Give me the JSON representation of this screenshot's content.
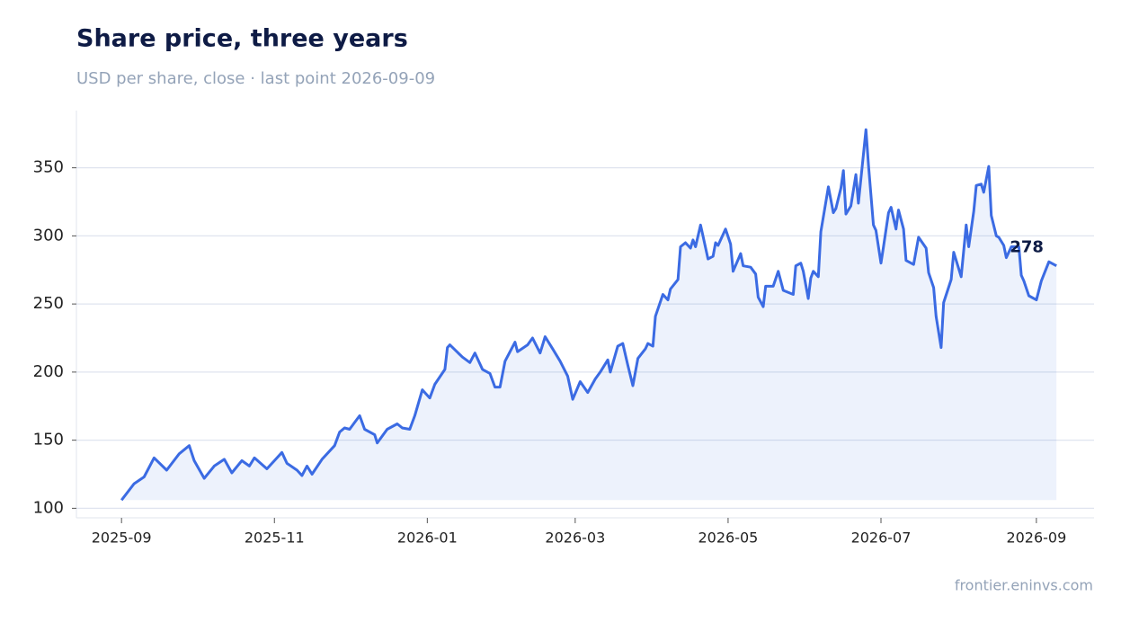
{
  "chart_data": {
    "type": "line",
    "title": "Share price, three years",
    "subtitle": "USD per share, close · last point 2026-09-09",
    "source": "frontier.eninvs.com",
    "x": [
      "2025-09-01",
      "2025-09-06",
      "2025-09-10",
      "2025-09-14",
      "2025-09-19",
      "2025-09-24",
      "2025-09-28",
      "2025-09-30",
      "2025-10-04",
      "2025-10-08",
      "2025-10-12",
      "2025-10-15",
      "2025-10-19",
      "2025-10-22",
      "2025-10-24",
      "2025-10-29",
      "2025-11-01",
      "2025-11-04",
      "2025-11-06",
      "2025-11-10",
      "2025-11-12",
      "2025-11-14",
      "2025-11-16",
      "2025-11-20",
      "2025-11-25",
      "2025-11-27",
      "2025-11-29",
      "2025-12-01",
      "2025-12-03",
      "2025-12-05",
      "2025-12-07",
      "2025-12-11",
      "2025-12-12",
      "2025-12-16",
      "2025-12-20",
      "2025-12-22",
      "2025-12-25",
      "2025-12-27",
      "2025-12-30",
      "2026-01-02",
      "2026-01-04",
      "2026-01-08",
      "2026-01-09",
      "2026-01-10",
      "2026-01-15",
      "2026-01-18",
      "2026-01-20",
      "2026-01-23",
      "2026-01-26",
      "2026-01-28",
      "2026-01-30",
      "2026-02-01",
      "2026-02-05",
      "2026-02-06",
      "2026-02-10",
      "2026-02-12",
      "2026-02-15",
      "2026-02-17",
      "2026-02-20",
      "2026-02-23",
      "2026-02-26",
      "2026-02-28",
      "2026-03-03",
      "2026-03-06",
      "2026-03-09",
      "2026-03-11",
      "2026-03-14",
      "2026-03-15",
      "2026-03-18",
      "2026-03-20",
      "2026-03-22",
      "2026-03-24",
      "2026-03-26",
      "2026-03-29",
      "2026-03-30",
      "2026-04-01",
      "2026-04-02",
      "2026-04-05",
      "2026-04-07",
      "2026-04-08",
      "2026-04-11",
      "2026-04-12",
      "2026-04-14",
      "2026-04-16",
      "2026-04-17",
      "2026-04-18",
      "2026-04-20",
      "2026-04-21",
      "2026-04-23",
      "2026-04-25",
      "2026-04-26",
      "2026-04-27",
      "2026-04-30",
      "2026-05-02",
      "2026-05-03",
      "2026-05-06",
      "2026-05-07",
      "2026-05-10",
      "2026-05-12",
      "2026-05-13",
      "2026-05-15",
      "2026-05-16",
      "2026-05-19",
      "2026-05-21",
      "2026-05-23",
      "2026-05-27",
      "2026-05-28",
      "2026-05-30",
      "2026-05-31",
      "2026-06-02",
      "2026-06-03",
      "2026-06-04",
      "2026-06-06",
      "2026-06-07",
      "2026-06-09",
      "2026-06-10",
      "2026-06-12",
      "2026-06-13",
      "2026-06-15",
      "2026-06-16",
      "2026-06-17",
      "2026-06-19",
      "2026-06-21",
      "2026-06-22",
      "2026-06-24",
      "2026-06-25",
      "2026-06-26",
      "2026-06-28",
      "2026-06-29",
      "2026-07-01",
      "2026-07-02",
      "2026-07-04",
      "2026-07-05",
      "2026-07-07",
      "2026-07-08",
      "2026-07-10",
      "2026-07-11",
      "2026-07-14",
      "2026-07-16",
      "2026-07-19",
      "2026-07-20",
      "2026-07-22",
      "2026-07-23",
      "2026-07-25",
      "2026-07-26",
      "2026-07-29",
      "2026-07-30",
      "2026-08-02",
      "2026-08-04",
      "2026-08-05",
      "2026-08-07",
      "2026-08-08",
      "2026-08-10",
      "2026-08-11",
      "2026-08-13",
      "2026-08-14",
      "2026-08-16",
      "2026-08-17",
      "2026-08-19",
      "2026-08-20",
      "2026-08-22",
      "2026-08-24",
      "2026-08-25",
      "2026-08-26",
      "2026-08-27",
      "2026-08-29",
      "2026-09-01",
      "2026-09-03",
      "2026-09-06",
      "2026-09-09"
    ],
    "series": [
      {
        "name": "Close",
        "color": "#3b6be3",
        "values": [
          106,
          118,
          123,
          137,
          128,
          140,
          146,
          135,
          122,
          131,
          136,
          126,
          135,
          131,
          137,
          129,
          135,
          141,
          133,
          128,
          124,
          131,
          125,
          136,
          146,
          156,
          159,
          158,
          163,
          168,
          158,
          154,
          148,
          158,
          162,
          159,
          158,
          168,
          187,
          181,
          191,
          202,
          218,
          220,
          211,
          207,
          214,
          202,
          199,
          189,
          189,
          208,
          222,
          215,
          220,
          225,
          214,
          226,
          217,
          208,
          197,
          180,
          193,
          185,
          195,
          200,
          209,
          200,
          219,
          221,
          205,
          190,
          210,
          217,
          221,
          219,
          241,
          257,
          253,
          261,
          268,
          292,
          295,
          291,
          297,
          292,
          308,
          300,
          283,
          285,
          295,
          293,
          305,
          294,
          274,
          287,
          278,
          277,
          272,
          255,
          248,
          263,
          263,
          274,
          260,
          257,
          278,
          280,
          274,
          254,
          269,
          274,
          270,
          303,
          325,
          336,
          317,
          320,
          335,
          348,
          316,
          322,
          345,
          324,
          360,
          378,
          352,
          308,
          304,
          280,
          292,
          317,
          321,
          305,
          319,
          305,
          282,
          279,
          299,
          291,
          273,
          262,
          241,
          218,
          251,
          268,
          288,
          270,
          308,
          292,
          318,
          337,
          338,
          332,
          351,
          315,
          300,
          299,
          293,
          284,
          292,
          292,
          292,
          271,
          267,
          256,
          253,
          267,
          281,
          278
        ]
      }
    ],
    "annotations": [
      {
        "x": "2026-09-09",
        "y": 278,
        "text": "278"
      }
    ],
    "xlim": [
      "2025-08-14",
      "2026-09-24"
    ],
    "xticks": [
      {
        "value": "2025-09-01",
        "label": "2025-09"
      },
      {
        "value": "2025-11-01",
        "label": "2025-11"
      },
      {
        "value": "2026-01-01",
        "label": "2026-01"
      },
      {
        "value": "2026-03-01",
        "label": "2026-03"
      },
      {
        "value": "2026-05-01",
        "label": "2026-05"
      },
      {
        "value": "2026-07-01",
        "label": "2026-07"
      },
      {
        "value": "2026-09-01",
        "label": "2026-09"
      }
    ],
    "ylim": [
      93,
      392
    ],
    "yticks": [
      100,
      150,
      200,
      250,
      300,
      350
    ],
    "grid": true
  }
}
